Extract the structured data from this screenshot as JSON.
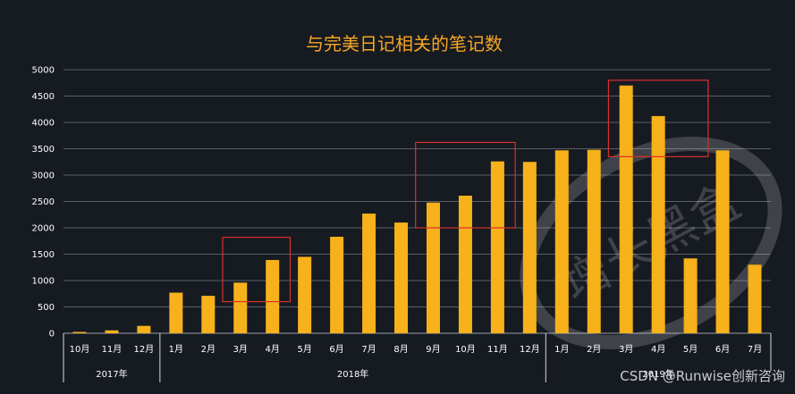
{
  "chart_data": {
    "type": "bar",
    "title": "与完美日记相关的笔记数",
    "xlabel": "",
    "ylabel": "",
    "ylim": [
      0,
      5000
    ],
    "yticks": [
      0,
      500,
      1000,
      1500,
      2000,
      2500,
      3000,
      3500,
      4000,
      4500,
      5000
    ],
    "grid": true,
    "categories": [
      "10月",
      "11月",
      "12月",
      "1月",
      "2月",
      "3月",
      "4月",
      "5月",
      "6月",
      "7月",
      "8月",
      "9月",
      "10月",
      "11月",
      "12月",
      "1月",
      "2月",
      "3月",
      "4月",
      "5月",
      "6月",
      "7月"
    ],
    "category_groups": [
      {
        "label": "2017年",
        "count": 3
      },
      {
        "label": "2018年",
        "count": 12
      },
      {
        "label": "2019年",
        "count": 7
      }
    ],
    "values": [
      25,
      55,
      140,
      770,
      710,
      960,
      1390,
      1450,
      1830,
      2270,
      2100,
      2480,
      2610,
      3260,
      3250,
      3470,
      3480,
      4700,
      4120,
      1420,
      3470,
      1300
    ],
    "bar_color": "#f7b11b",
    "highlight_color": "#d9312b",
    "highlight_boxes": [
      {
        "from": 5,
        "to": 6,
        "ymin": 600,
        "ymax": 1820
      },
      {
        "from": 11,
        "to": 13,
        "ymin": 2000,
        "ymax": 3620
      },
      {
        "from": 17,
        "to": 19,
        "ymin": 3350,
        "ymax": 4800
      }
    ]
  },
  "watermark": {
    "text": "CSDN @Runwise创新咨询",
    "stamp_text": "增长黑盒"
  }
}
